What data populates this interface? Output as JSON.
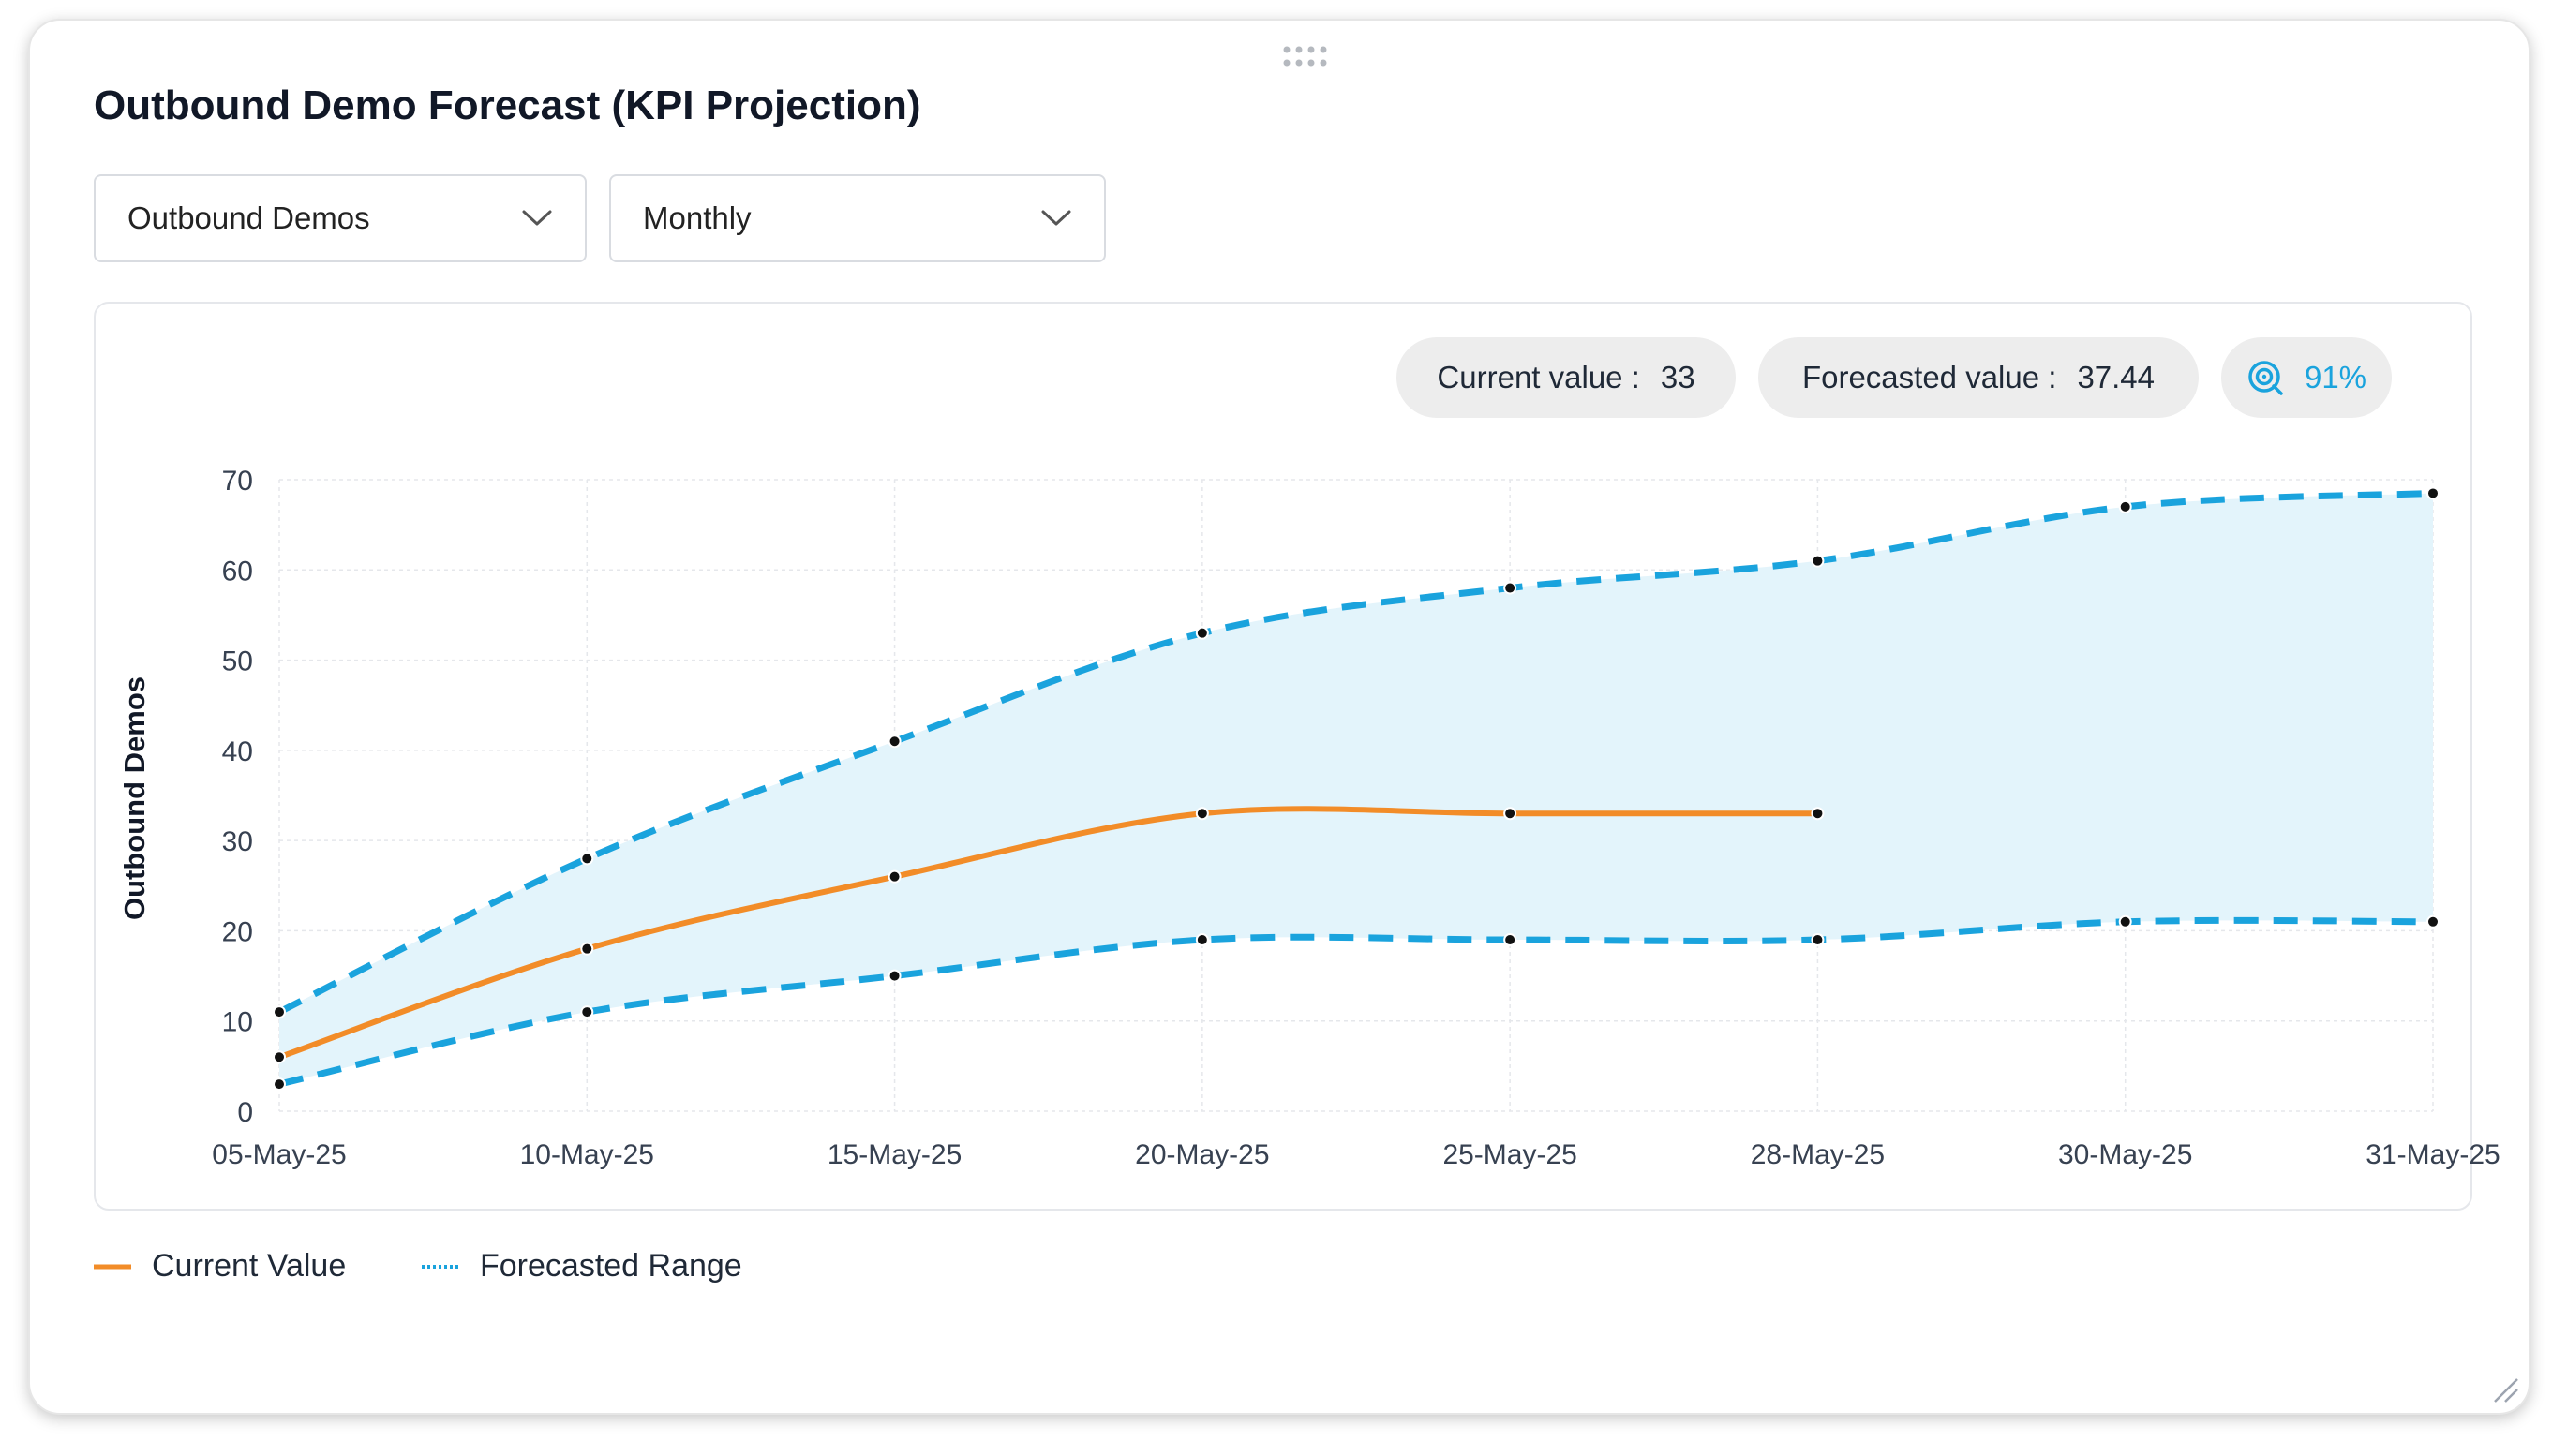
{
  "card": {
    "title": "Outbound Demo Forecast (KPI Projection)"
  },
  "filters": {
    "metric_selected": "Outbound Demos",
    "period_selected": "Monthly"
  },
  "summary": {
    "current_label": "Current value :",
    "current_value": "33",
    "forecast_label": "Forecasted value :",
    "forecast_value": "37.44",
    "accuracy_value": "91%"
  },
  "legend": {
    "current": "Current Value",
    "forecast": "Forecasted Range"
  },
  "colors": {
    "current_line": "#f28c28",
    "forecast_line": "#1aa3dd",
    "forecast_fill": "#e3f4fb",
    "grid": "#e5e7eb",
    "point": "#111111"
  },
  "icons": {
    "drag": "drag-handle-icon",
    "chevron": "chevron-down-icon",
    "accuracy": "target-icon",
    "resize": "resize-grip-icon"
  },
  "chart_data": {
    "type": "line",
    "title": "",
    "xlabel": "",
    "ylabel": "Outbound Demos",
    "ylim": [
      0,
      70
    ],
    "yticks": [
      0,
      10,
      20,
      30,
      40,
      50,
      60,
      70
    ],
    "grid": true,
    "categories": [
      "05-May-25",
      "10-May-25",
      "15-May-25",
      "20-May-25",
      "25-May-25",
      "28-May-25",
      "30-May-25",
      "31-May-25"
    ],
    "series": [
      {
        "name": "Current Value",
        "style": "solid",
        "values": [
          6,
          18,
          26,
          33,
          33,
          33,
          null,
          null
        ]
      },
      {
        "name": "Forecasted Range",
        "role": "upper",
        "style": "dashed",
        "values": [
          11,
          28,
          41,
          53,
          58,
          61,
          67,
          68.5
        ]
      },
      {
        "name": "Forecasted Range",
        "role": "lower",
        "style": "dashed",
        "values": [
          3,
          11,
          15,
          19,
          19,
          19,
          21,
          21
        ]
      }
    ]
  }
}
